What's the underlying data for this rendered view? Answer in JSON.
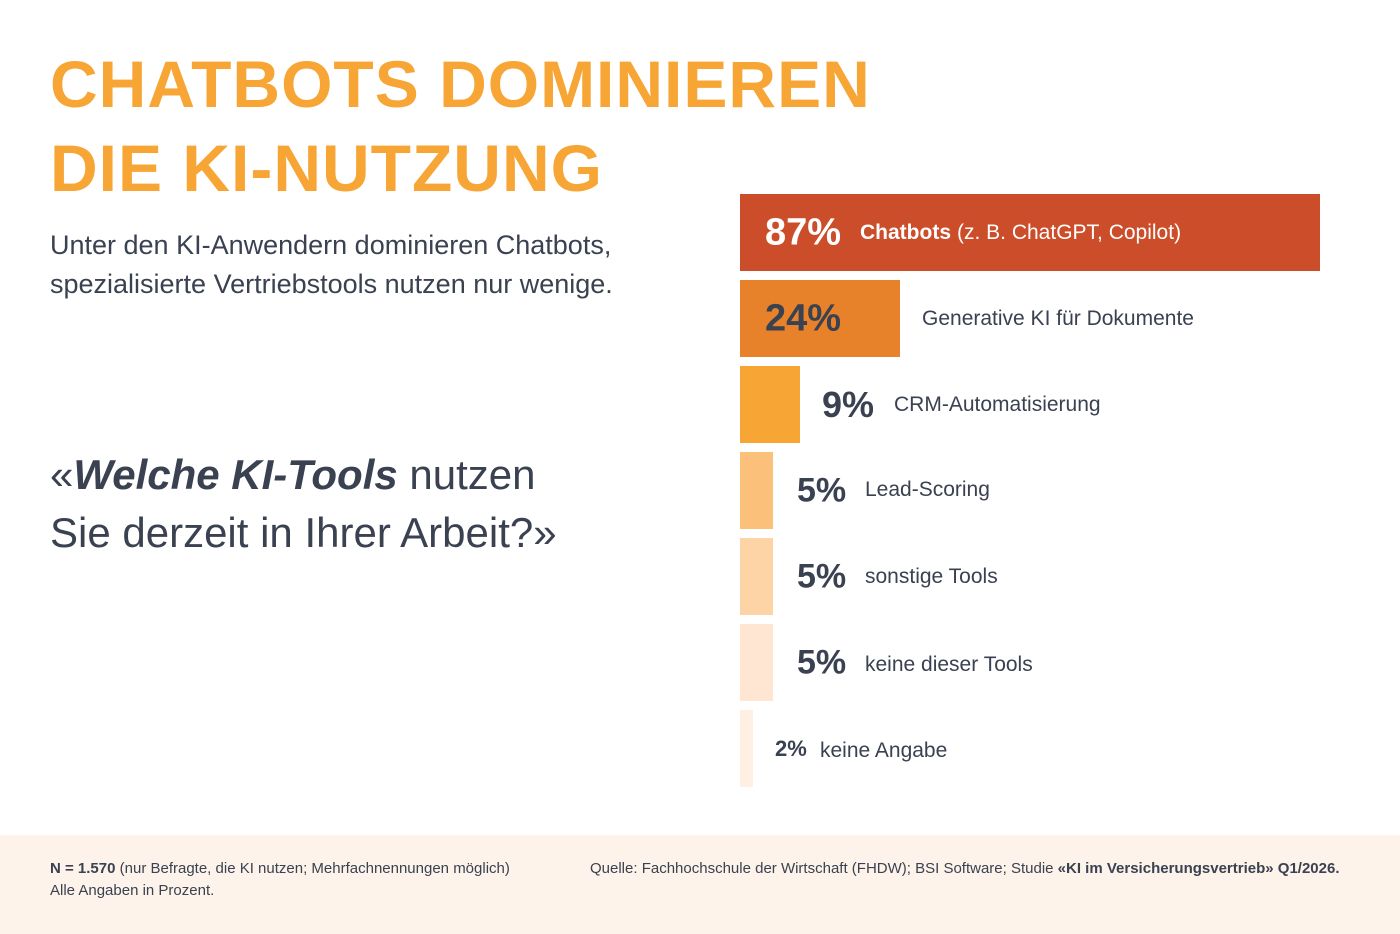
{
  "chart_data": {
    "type": "bar",
    "orientation": "horizontal",
    "title": "CHATBOTS DOMINIEREN DIE KI-NUTZUNG",
    "subtitle": "Unter den KI-Anwendern dominieren Chatbots, spezialisierte Vertriebstools nutzen nur wenige.",
    "question": [
      "«",
      "Welche KI-Tools",
      " nutzen Sie derzeit in Ihrer Arbeit?»"
    ],
    "categories": [
      "Chatbots",
      "Generative KI für Dokumente",
      "CRM-Automatisierung",
      "Lead-Scoring",
      "sonstige Tools",
      "keine dieser Tools",
      "keine Angabe"
    ],
    "category_example": "(z. B. ChatGPT, Copilot)",
    "values": [
      87,
      24,
      9,
      5,
      5,
      5,
      2
    ],
    "value_labels": [
      "87%",
      "24%",
      "9%",
      "5%",
      "5%",
      "5%",
      "2%"
    ],
    "colors": [
      "#cc4d29",
      "#e8822a",
      "#f7a535",
      "#fbc07a",
      "#fdd4a5",
      "#fee6d3",
      "#fff0e3"
    ],
    "xlim": [
      0,
      100
    ],
    "footer": {
      "sample": "N = 1.570",
      "sample_note": " (nur Befragte, die KI nutzen; Mehrfachnennungen möglich)",
      "unit_note": "Alle Angaben in Prozent.",
      "source": "Quelle: Fachhochschule der Wirtschaft (FHDW); BSI Software; Studie ",
      "study": "«KI im Versicherungsvertrieb» Q1/2026."
    }
  }
}
